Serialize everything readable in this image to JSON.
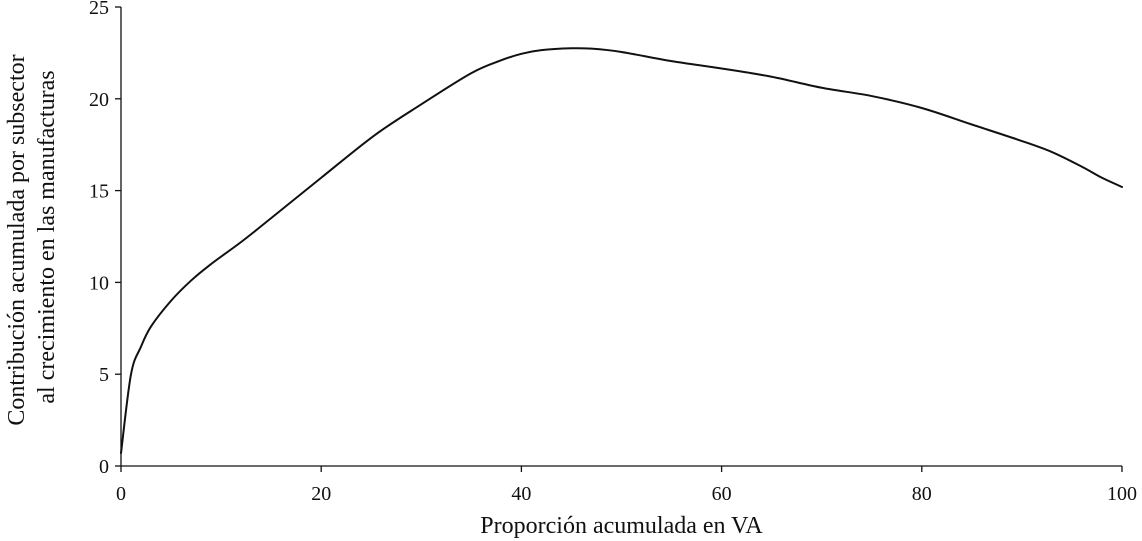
{
  "chart_data": {
    "type": "line",
    "xlabel": "Proporción acumulada en VA",
    "ylabel_lines": [
      "Contribución acumulada por subsector",
      "al crecimiento en las manufacturas"
    ],
    "xlim": [
      0,
      100
    ],
    "ylim": [
      0,
      25
    ],
    "x_ticks": [
      0,
      20,
      40,
      60,
      80,
      100
    ],
    "y_ticks": [
      0,
      5,
      10,
      15,
      20,
      25
    ],
    "grid": false,
    "series": [
      {
        "color": "#111111",
        "x": [
          0,
          1,
          2,
          3,
          5,
          7,
          9,
          12,
          15,
          20,
          25.3,
          30,
          35,
          38,
          40,
          42,
          45,
          47,
          50,
          55,
          60,
          65,
          70,
          75,
          80,
          85,
          90,
          93,
          96,
          98,
          100
        ],
        "y": [
          0.7,
          5.0,
          6.5,
          7.6,
          9.0,
          10.1,
          11.0,
          12.2,
          13.5,
          15.7,
          18.0,
          19.7,
          21.4,
          22.1,
          22.45,
          22.65,
          22.75,
          22.73,
          22.55,
          22.05,
          21.65,
          21.2,
          20.6,
          20.15,
          19.5,
          18.6,
          17.7,
          17.1,
          16.3,
          15.7,
          15.2
        ]
      }
    ]
  }
}
